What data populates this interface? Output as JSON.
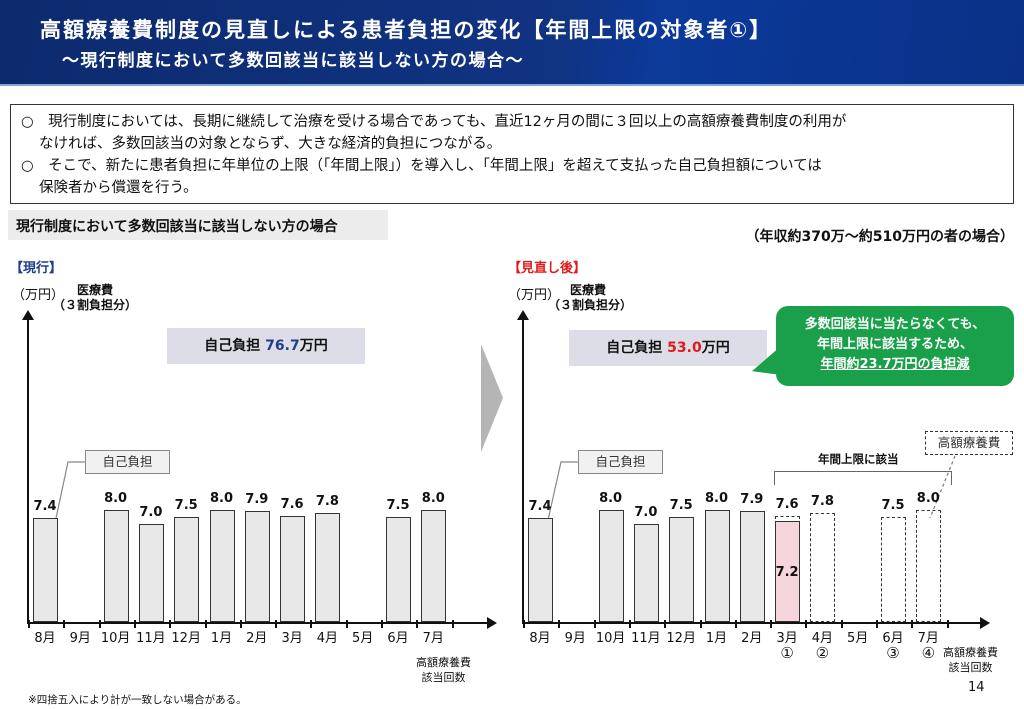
{
  "header": {
    "title": "高額療養費制度の見直しによる患者負担の変化【年間上限の対象者①】",
    "subtitle": "～現行制度において多数回該当に該当しない方の場合～"
  },
  "summary": {
    "items": [
      {
        "line1": "○　現行制度においては、長期に継続して治療を受ける場合であっても、直近12ヶ月の間に３回以上の高額療養費制度の利用が",
        "line2": "なければ、多数回該当の対象とならず、大きな経済的負担につながる。"
      },
      {
        "line1": "○　そこで、新たに患者負担に年単位の上限（「年間上限」）を導入し、「年間上限」を超えて支払った自己負担額については",
        "line2": "保険者から償還を行う。"
      }
    ]
  },
  "section_label": "現行制度において多数回該当に該当しない方の場合",
  "income_note": "（年収約370万～約510万円の者の場合）",
  "note": "※四捨五入により計が一致しない場合がある。",
  "page_number": "14",
  "current": {
    "label": "【現行】",
    "unit": "（万円）",
    "axis_title_1": "医療費",
    "axis_title_2": "（３割負担分）",
    "total_prefix": "自己負担 ",
    "total_value": "76.7",
    "total_suffix": "万円",
    "callout": "自己負担",
    "footer_1": "高額療養費",
    "footer_2": "該当回数"
  },
  "revised": {
    "label": "【見直し後】",
    "unit": "（万円）",
    "axis_title_1": "医療費",
    "axis_title_2": "（３割負担分）",
    "total_prefix": "自己負担 ",
    "total_value": "53.0",
    "total_suffix": "万円",
    "callout": "自己負担",
    "callout_dashed": "高額療養費",
    "bracket_label": "年間上限に該当",
    "bubble_line1": "多数回該当に当たらなくても、",
    "bubble_line2": "年間上限に該当するため、",
    "bubble_line3": "年間約23.7万円の負担減",
    "footer_1": "高額療養費",
    "footer_2": "該当回数",
    "counts": [
      "①",
      "②",
      "③",
      "④"
    ]
  },
  "colors": {
    "header_bg": "#103382",
    "current_accent": "#1f3d8a",
    "revised_accent": "#e01a1a",
    "bubble_green": "#1aa04a",
    "capped_bar_pink": "#f6d5dc",
    "bar_gray": "#e8e8e8"
  },
  "chart_data": [
    {
      "type": "bar",
      "title": "【現行】",
      "ylabel": "医療費（３割負担分）（万円）",
      "xlabel": "高額療養費該当回数",
      "categories": [
        "8月",
        "9月",
        "10月",
        "11月",
        "12月",
        "1月",
        "2月",
        "3月",
        "4月",
        "5月",
        "6月",
        "7月"
      ],
      "values": [
        7.4,
        null,
        8.0,
        7.0,
        7.5,
        8.0,
        7.9,
        7.6,
        7.8,
        null,
        7.5,
        8.0
      ],
      "total_self_pay": 76.7,
      "annotations": [
        "自己負担 76.7万円",
        "自己負担"
      ]
    },
    {
      "type": "bar",
      "title": "【見直し後】",
      "ylabel": "医療費（３割負担分）（万円）",
      "xlabel": "高額療養費該当回数",
      "categories": [
        "8月",
        "9月",
        "10月",
        "11月",
        "12月",
        "1月",
        "2月",
        "3月",
        "4月",
        "5月",
        "6月",
        "7月"
      ],
      "series": [
        {
          "name": "自己負担",
          "values": [
            7.4,
            null,
            8.0,
            7.0,
            7.5,
            8.0,
            7.9,
            7.2,
            0,
            null,
            0,
            0
          ]
        },
        {
          "name": "医療費(3割負担分)",
          "values": [
            7.4,
            null,
            8.0,
            7.0,
            7.5,
            8.0,
            7.9,
            7.6,
            7.8,
            null,
            7.5,
            8.0
          ]
        }
      ],
      "annual_cap_months": [
        "3月",
        "4月",
        "6月",
        "7月"
      ],
      "annual_cap_counts": [
        "①",
        "②",
        "③",
        "④"
      ],
      "total_self_pay": 53.0,
      "annual_reduction": 23.7,
      "annotations": [
        "自己負担 53.0万円",
        "年間上限に該当",
        "高額療養費",
        "多数回該当に当たらなくても、年間上限に該当するため、年間約23.7万円の負担減"
      ]
    }
  ]
}
